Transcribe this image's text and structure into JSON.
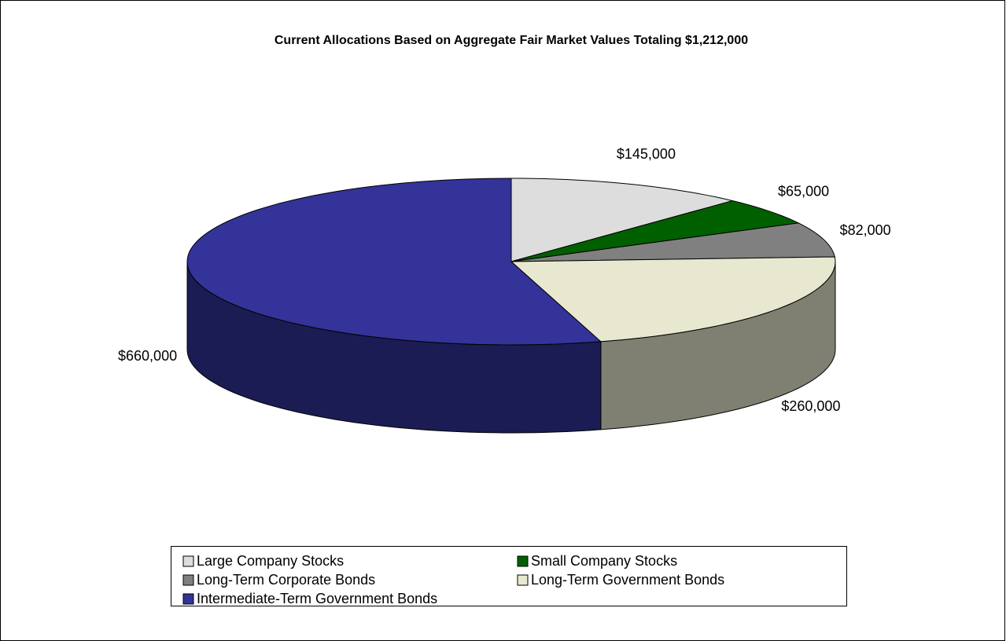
{
  "chart_data": {
    "type": "pie3d",
    "title": "Current Allocations Based on Aggregate Fair Market Values Totaling $1,212,000",
    "categories": [
      "Large Company Stocks",
      "Small Company Stocks",
      "Long-Term Corporate Bonds",
      "Long-Term Government Bonds",
      "Intermediate-Term Government Bonds"
    ],
    "values": [
      145000,
      65000,
      82000,
      260000,
      660000
    ],
    "value_labels": [
      "$145,000",
      "$65,000",
      "$82,000",
      "$260,000",
      "$660,000"
    ],
    "colors": [
      "#dddddd",
      "#006000",
      "#808080",
      "#e8e8d0",
      "#333399"
    ],
    "legend": "bottom"
  }
}
